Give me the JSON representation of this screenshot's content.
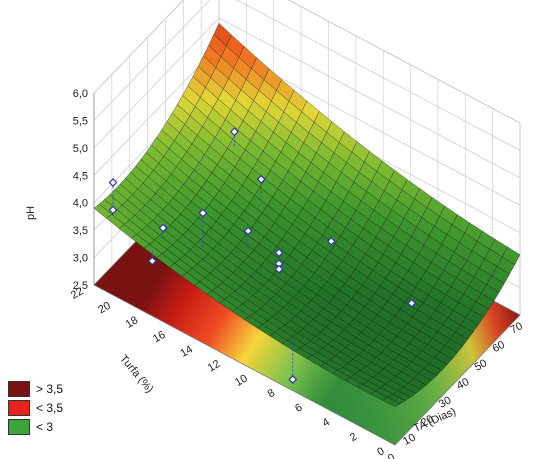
{
  "chart_data": {
    "type": "surface3d",
    "xlabel": "TA (Dias)",
    "ylabel": "Turfa (%)",
    "zlabel": "pH",
    "xlim": [
      0,
      70
    ],
    "ylim": [
      0,
      22
    ],
    "zlim": [
      2.5,
      6.0
    ],
    "x_ticks": [
      "0",
      "10",
      "20",
      "30",
      "40",
      "50",
      "60",
      "70"
    ],
    "y_ticks": [
      "0",
      "2",
      "4",
      "6",
      "8",
      "10",
      "12",
      "14",
      "16",
      "18",
      "20",
      "22"
    ],
    "z_ticks": [
      "2,5",
      "3,0",
      "3,5",
      "4,0",
      "4,5",
      "5,0",
      "5,5",
      "6,0"
    ],
    "surface_corners": [
      {
        "x": 0,
        "y": 22,
        "z": 3.9
      },
      {
        "x": 70,
        "y": 22,
        "z": 4.9
      },
      {
        "x": 70,
        "y": 0,
        "z": 3.6
      },
      {
        "x": 0,
        "y": 0,
        "z": 3.2
      }
    ],
    "observed_points": [
      {
        "x": 3,
        "y": 21,
        "z": 4.4
      },
      {
        "x": 3,
        "y": 21,
        "z": 3.9
      },
      {
        "x": 8,
        "y": 18,
        "z": 3.8
      },
      {
        "x": 2,
        "y": 18,
        "z": 3.4
      },
      {
        "x": 15,
        "y": 16,
        "z": 4.1
      },
      {
        "x": 25,
        "y": 14,
        "z": 3.7
      },
      {
        "x": 27,
        "y": 12,
        "z": 3.5
      },
      {
        "x": 27,
        "y": 12,
        "z": 3.3
      },
      {
        "x": 27,
        "y": 12,
        "z": 3.2
      },
      {
        "x": 40,
        "y": 15,
        "z": 4.0
      },
      {
        "x": 48,
        "y": 18,
        "z": 4.2
      },
      {
        "x": 41,
        "y": 10,
        "z": 3.5
      },
      {
        "x": 40,
        "y": 4,
        "z": 3.2
      },
      {
        "x": 4,
        "y": 8,
        "z": 2.5
      }
    ],
    "legend": [
      {
        "label": "> 3,5",
        "color": "#7a1212"
      },
      {
        "label": "< 3,5",
        "color": "#e8241c"
      },
      {
        "label": "< 3",
        "color": "#3aa53a"
      }
    ]
  }
}
